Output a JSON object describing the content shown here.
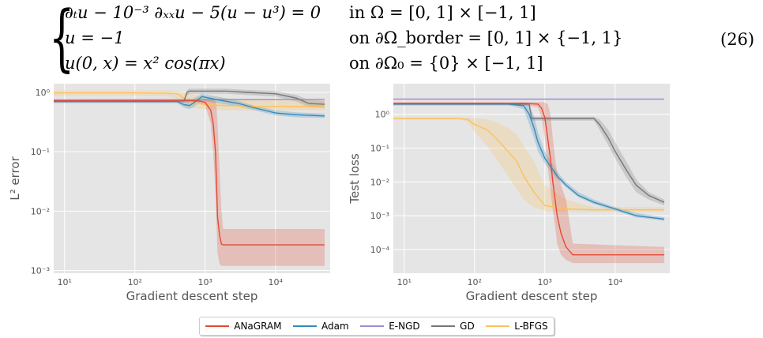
{
  "equation": {
    "line1": "∂ₜu − 10⁻³ ∂ₓₓu − 5(u − u³) = 0",
    "line1_domain": "in Ω = [0, 1] × [−1, 1]",
    "line2": "u = −1",
    "line2_domain": "on ∂Ω_border = [0, 1] × {−1, 1}",
    "line3": "u(0, x) = x² cos(πx)",
    "line3_domain": "on ∂Ω₀ = {0} × [−1, 1]",
    "number": "(26)"
  },
  "legend": {
    "items": [
      {
        "label": "ANaGRAM",
        "color": "#e24a33"
      },
      {
        "label": "Adam",
        "color": "#348abd"
      },
      {
        "label": "E-NGD",
        "color": "#988ed5"
      },
      {
        "label": "GD",
        "color": "#777777"
      },
      {
        "label": "L-BFGS",
        "color": "#fbc15e"
      }
    ]
  },
  "chart_data": [
    {
      "type": "line",
      "xlabel": "Gradient descent step",
      "ylabel": "L² error",
      "xscale": "log",
      "yscale": "log",
      "xlim": [
        7,
        60000
      ],
      "ylim": [
        0.0009,
        1.4
      ],
      "xticks": [
        {
          "v": 10,
          "label": "10¹"
        },
        {
          "v": 100,
          "label": "10²"
        },
        {
          "v": 1000,
          "label": "10³"
        },
        {
          "v": 10000,
          "label": "10⁴"
        }
      ],
      "yticks": [
        {
          "v": 1,
          "label": "10⁰"
        },
        {
          "v": 0.1,
          "label": "10⁻¹"
        },
        {
          "v": 0.01,
          "label": "10⁻²"
        },
        {
          "v": 0.001,
          "label": "10⁻³"
        }
      ],
      "grid": true,
      "series": [
        {
          "name": "L-BFGS",
          "color": "#fbc15e",
          "x": [
            7,
            100,
            300,
            400,
            500,
            600,
            1000,
            2000,
            5000,
            50000
          ],
          "y": [
            0.98,
            0.98,
            0.97,
            0.95,
            0.8,
            0.7,
            0.62,
            0.6,
            0.58,
            0.58
          ],
          "band_low": [
            0.88,
            0.88,
            0.85,
            0.78,
            0.6,
            0.55,
            0.52,
            0.5,
            0.5,
            0.5
          ],
          "band_high": [
            1.08,
            1.08,
            1.08,
            1.06,
            1.02,
            0.95,
            0.85,
            0.8,
            0.75,
            0.75
          ]
        },
        {
          "name": "E-NGD",
          "color": "#988ed5",
          "x": [
            7,
            50000
          ],
          "y": [
            0.75,
            0.76
          ]
        },
        {
          "name": "GD",
          "color": "#777777",
          "x": [
            7,
            500,
            550,
            600,
            2000,
            4000,
            10000,
            20000,
            30000,
            50000
          ],
          "y": [
            0.72,
            0.72,
            1.0,
            1.05,
            1.05,
            1.0,
            0.95,
            0.8,
            0.65,
            0.63
          ],
          "band_low": [
            0.68,
            0.68,
            0.9,
            0.95,
            0.95,
            0.9,
            0.85,
            0.7,
            0.56,
            0.55
          ],
          "band_high": [
            0.76,
            0.76,
            1.1,
            1.15,
            1.15,
            1.1,
            1.05,
            0.9,
            0.74,
            0.72
          ]
        },
        {
          "name": "Adam",
          "color": "#348abd",
          "x": [
            7,
            400,
            500,
            600,
            700,
            900,
            1500,
            3000,
            5000,
            10000,
            20000,
            50000
          ],
          "y": [
            0.7,
            0.7,
            0.62,
            0.6,
            0.68,
            0.85,
            0.75,
            0.65,
            0.55,
            0.45,
            0.42,
            0.4
          ],
          "band_low": [
            0.66,
            0.66,
            0.55,
            0.52,
            0.58,
            0.72,
            0.66,
            0.58,
            0.5,
            0.41,
            0.38,
            0.37
          ],
          "band_high": [
            0.74,
            0.74,
            0.7,
            0.7,
            0.8,
            0.95,
            0.85,
            0.72,
            0.6,
            0.5,
            0.46,
            0.44
          ]
        },
        {
          "name": "ANaGRAM",
          "color": "#e24a33",
          "x": [
            7,
            500,
            800,
            1000,
            1200,
            1300,
            1400,
            1450,
            1500,
            1600,
            1700,
            1800,
            50000
          ],
          "y": [
            0.72,
            0.72,
            0.72,
            0.68,
            0.5,
            0.3,
            0.1,
            0.03,
            0.008,
            0.004,
            0.0028,
            0.0027,
            0.0027
          ],
          "band_low": [
            0.68,
            0.68,
            0.68,
            0.6,
            0.3,
            0.1,
            0.02,
            0.006,
            0.002,
            0.0013,
            0.0012,
            0.0012,
            0.0012
          ],
          "band_high": [
            0.76,
            0.76,
            0.76,
            0.76,
            0.76,
            0.75,
            0.72,
            0.6,
            0.3,
            0.05,
            0.01,
            0.005,
            0.005
          ]
        }
      ]
    },
    {
      "type": "line",
      "xlabel": "Gradient descent step",
      "ylabel": "Test loss",
      "xscale": "log",
      "yscale": "log",
      "xlim": [
        7,
        60000
      ],
      "ylim": [
        2e-05,
        8
      ],
      "xticks": [
        {
          "v": 10,
          "label": "10¹"
        },
        {
          "v": 100,
          "label": "10²"
        },
        {
          "v": 1000,
          "label": "10³"
        },
        {
          "v": 10000,
          "label": "10⁴"
        }
      ],
      "yticks": [
        {
          "v": 1,
          "label": "10⁰"
        },
        {
          "v": 0.1,
          "label": "10⁻¹"
        },
        {
          "v": 0.01,
          "label": "10⁻²"
        },
        {
          "v": 0.001,
          "label": "10⁻³"
        },
        {
          "v": 0.0001,
          "label": "10⁻⁴"
        }
      ],
      "grid": true,
      "series": [
        {
          "name": "L-BFGS",
          "color": "#fbc15e",
          "x": [
            7,
            60,
            80,
            100,
            150,
            200,
            300,
            400,
            500,
            700,
            1000,
            2000,
            5000,
            50000
          ],
          "y": [
            0.75,
            0.75,
            0.7,
            0.5,
            0.35,
            0.2,
            0.08,
            0.04,
            0.015,
            0.005,
            0.002,
            0.0016,
            0.0015,
            0.0015
          ],
          "band_low": [
            0.7,
            0.7,
            0.6,
            0.3,
            0.12,
            0.05,
            0.015,
            0.006,
            0.003,
            0.0018,
            0.0014,
            0.0013,
            0.0013,
            0.0013
          ],
          "band_high": [
            0.8,
            0.8,
            0.8,
            0.78,
            0.7,
            0.6,
            0.4,
            0.25,
            0.12,
            0.04,
            0.008,
            0.003,
            0.0018,
            0.0018
          ]
        },
        {
          "name": "E-NGD",
          "color": "#988ed5",
          "x": [
            7,
            50000
          ],
          "y": [
            2.8,
            2.8
          ]
        },
        {
          "name": "GD",
          "color": "#777777",
          "x": [
            7,
            600,
            650,
            5000,
            6000,
            8000,
            10000,
            15000,
            20000,
            30000,
            50000
          ],
          "y": [
            2.0,
            2.0,
            0.75,
            0.75,
            0.5,
            0.2,
            0.08,
            0.02,
            0.008,
            0.004,
            0.0025
          ],
          "band_low": [
            1.8,
            1.8,
            0.65,
            0.65,
            0.35,
            0.12,
            0.05,
            0.012,
            0.005,
            0.003,
            0.002
          ],
          "band_high": [
            2.2,
            2.2,
            0.85,
            0.85,
            0.7,
            0.35,
            0.15,
            0.035,
            0.012,
            0.005,
            0.003
          ]
        },
        {
          "name": "Adam",
          "color": "#348abd",
          "x": [
            7,
            300,
            500,
            600,
            700,
            800,
            1000,
            1500,
            2000,
            3000,
            5000,
            10000,
            20000,
            50000
          ],
          "y": [
            2.0,
            2.0,
            1.8,
            1.0,
            0.4,
            0.15,
            0.05,
            0.015,
            0.008,
            0.004,
            0.0025,
            0.0016,
            0.001,
            0.0008
          ],
          "band_low": [
            1.9,
            1.9,
            1.4,
            0.5,
            0.2,
            0.08,
            0.035,
            0.012,
            0.007,
            0.0035,
            0.0022,
            0.0014,
            0.0009,
            0.0007
          ],
          "band_high": [
            2.1,
            2.1,
            2.1,
            1.8,
            0.9,
            0.3,
            0.08,
            0.02,
            0.01,
            0.005,
            0.003,
            0.0018,
            0.0012,
            0.0009
          ]
        },
        {
          "name": "ANaGRAM",
          "color": "#e24a33",
          "x": [
            7,
            500,
            800,
            900,
            1000,
            1100,
            1200,
            1300,
            1400,
            1500,
            1700,
            2000,
            2500,
            50000
          ],
          "y": [
            2.1,
            2.1,
            2.0,
            1.5,
            0.8,
            0.2,
            0.05,
            0.01,
            0.003,
            0.001,
            0.0003,
            0.00012,
            7e-05,
            7e-05
          ],
          "band_low": [
            1.9,
            1.9,
            1.6,
            0.8,
            0.2,
            0.03,
            0.006,
            0.0015,
            0.0005,
            0.00015,
            7e-05,
            5e-05,
            4e-05,
            4e-05
          ],
          "band_high": [
            2.3,
            2.3,
            2.3,
            2.3,
            2.2,
            2.0,
            1.0,
            0.2,
            0.05,
            0.02,
            0.008,
            0.003,
            0.00015,
            0.00012
          ]
        }
      ]
    }
  ]
}
